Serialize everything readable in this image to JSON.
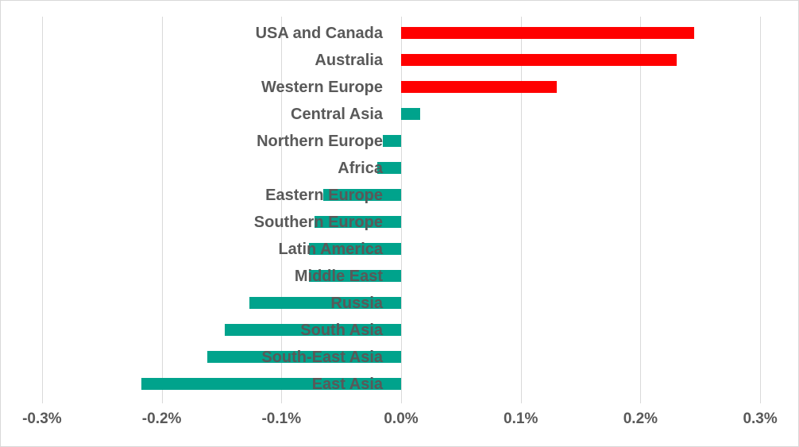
{
  "chart": {
    "background_color": "#FFFFFF",
    "border_color": "#D9D9D9",
    "gridline_color": "#D9D9D9",
    "text_color": "#595959",
    "positive_color": "#FF0000",
    "negative_color": "#00A38C"
  },
  "chart_data": {
    "type": "bar",
    "orientation": "horizontal",
    "title": "",
    "xlabel": "",
    "ylabel": "",
    "grid": true,
    "legend": false,
    "unit": "%",
    "xlim": [
      -0.3,
      0.3
    ],
    "x_tick_values": [
      -0.3,
      -0.2,
      -0.1,
      0.0,
      0.1,
      0.2,
      0.3
    ],
    "x_tick_labels": [
      "-0.3%",
      "-0.2%",
      "-0.1%",
      "0.0%",
      "0.1%",
      "0.2%",
      "0.3%"
    ],
    "categories": [
      "USA and Canada",
      "Australia",
      "Western Europe",
      "Central Asia",
      "Northern Europe",
      "Africa",
      "Eastern Europe",
      "Southern Europe",
      "Latin America",
      "Middle East",
      "Russia",
      "South Asia",
      "South-East Asia",
      "East Asia"
    ],
    "values": [
      0.245,
      0.23,
      0.13,
      0.016,
      -0.015,
      -0.02,
      -0.065,
      -0.072,
      -0.077,
      -0.077,
      -0.127,
      -0.147,
      -0.162,
      -0.217
    ],
    "bar_colors": [
      "#FF0000",
      "#FF0000",
      "#FF0000",
      "#00A38C",
      "#00A38C",
      "#00A38C",
      "#00A38C",
      "#00A38C",
      "#00A38C",
      "#00A38C",
      "#00A38C",
      "#00A38C",
      "#00A38C",
      "#00A38C"
    ]
  }
}
